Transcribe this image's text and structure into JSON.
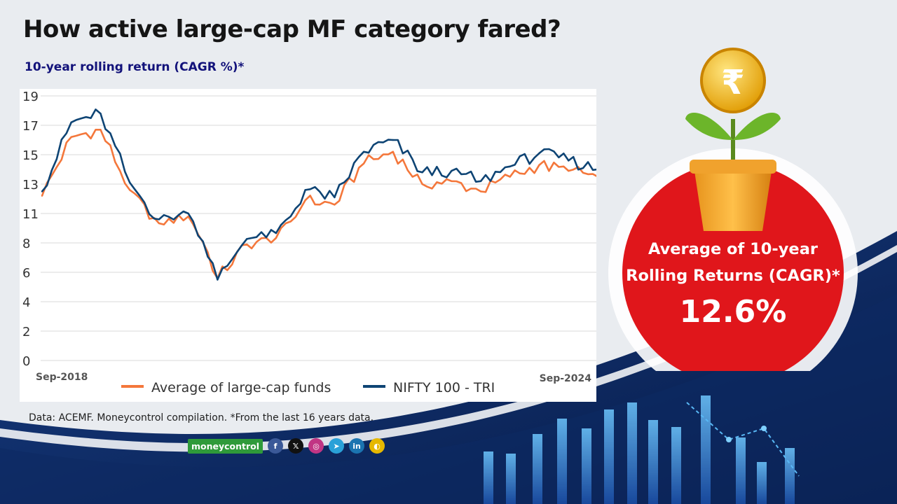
{
  "header": {
    "title": "How active large-cap MF category fared?",
    "subtitle": "10-year rolling return (CAGR %)*"
  },
  "chart_data": {
    "type": "line",
    "y_ticks": [
      "19",
      "17",
      "15",
      "13",
      "11",
      "8",
      "6",
      "4",
      "2",
      "0"
    ],
    "x_tick_labels": [
      "Sep-2018",
      "Sep-2024"
    ],
    "ylim": [
      0,
      19
    ],
    "grid": true,
    "legend_position": "bottom",
    "x": [
      "Sep-2018",
      "Jan-2019",
      "May-2019",
      "Sep-2019",
      "Jan-2020",
      "Mar-2020",
      "May-2020",
      "Sep-2020",
      "Jan-2021",
      "May-2021",
      "Sep-2021",
      "Jan-2022",
      "May-2022",
      "Sep-2022",
      "Jan-2023",
      "May-2023",
      "Sep-2023",
      "Jan-2024",
      "May-2024",
      "Sep-2024"
    ],
    "series": [
      {
        "name": "Average of large-cap funds",
        "color": "#f4773b",
        "values": [
          12.2,
          16.2,
          16.7,
          12.6,
          10.0,
          10.7,
          5.6,
          7.9,
          8.5,
          11.9,
          11.6,
          14.4,
          15.2,
          13.0,
          13.2,
          12.5,
          13.5,
          14.3,
          13.9,
          13.5
        ]
      },
      {
        "name": "NIFTY 100 - TRI",
        "color": "#0e4474",
        "values": [
          12.5,
          17.2,
          17.8,
          13.1,
          10.4,
          11.0,
          5.5,
          8.4,
          9.0,
          12.6,
          12.1,
          15.2,
          16.0,
          13.8,
          13.9,
          13.2,
          14.2,
          15.1,
          14.6,
          14.0
        ]
      }
    ]
  },
  "source_note": "Data: ACEMF. Moneycontrol compilation. *From the last 16 years data.",
  "branding": {
    "logo_text": "moneycontrol",
    "brand_color": "#2f9a3a",
    "social_icons": [
      {
        "name": "facebook-icon",
        "glyph": "f"
      },
      {
        "name": "x-icon",
        "glyph": "𝕏"
      },
      {
        "name": "instagram-icon",
        "glyph": "◎"
      },
      {
        "name": "telegram-icon",
        "glyph": "➤"
      },
      {
        "name": "linkedin-icon",
        "glyph": "in"
      },
      {
        "name": "google-news-icon",
        "glyph": "◐"
      }
    ]
  },
  "callout": {
    "label_line1": "Average of 10-year",
    "label_line2": "Rolling Returns (CAGR)*",
    "value": "12.6%",
    "coin_symbol": "₹",
    "circle_color": "#e0161b"
  }
}
